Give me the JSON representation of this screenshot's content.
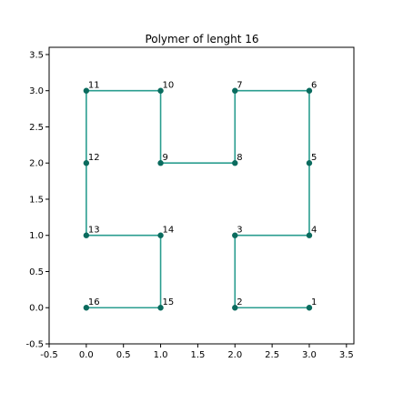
{
  "chart_data": {
    "type": "line",
    "title": "Polymer of lenght 16",
    "xlabel": "",
    "ylabel": "",
    "xlim": [
      -0.5,
      3.6
    ],
    "ylim": [
      -0.5,
      3.6
    ],
    "grid": false,
    "xticks": [
      "-0.5",
      "0.0",
      "0.5",
      "1.0",
      "1.5",
      "2.0",
      "2.5",
      "3.0",
      "3.5"
    ],
    "xtick_values": [
      -0.5,
      0.0,
      0.5,
      1.0,
      1.5,
      2.0,
      2.5,
      3.0,
      3.5
    ],
    "yticks": [
      "-0.5",
      "0.0",
      "0.5",
      "1.0",
      "1.5",
      "2.0",
      "2.5",
      "3.0",
      "3.5"
    ],
    "ytick_values": [
      -0.5,
      0.0,
      0.5,
      1.0,
      1.5,
      2.0,
      2.5,
      3.0,
      3.5
    ],
    "colors": {
      "line": "#2a9d8f",
      "marker": "#0a6b5e"
    },
    "points": [
      {
        "label": "1",
        "x": 3,
        "y": 0
      },
      {
        "label": "2",
        "x": 2,
        "y": 0
      },
      {
        "label": "3",
        "x": 2,
        "y": 1
      },
      {
        "label": "4",
        "x": 3,
        "y": 1
      },
      {
        "label": "5",
        "x": 3,
        "y": 2
      },
      {
        "label": "6",
        "x": 3,
        "y": 3
      },
      {
        "label": "7",
        "x": 2,
        "y": 3
      },
      {
        "label": "8",
        "x": 2,
        "y": 2
      },
      {
        "label": "9",
        "x": 1,
        "y": 2
      },
      {
        "label": "10",
        "x": 1,
        "y": 3
      },
      {
        "label": "11",
        "x": 0,
        "y": 3
      },
      {
        "label": "12",
        "x": 0,
        "y": 2
      },
      {
        "label": "13",
        "x": 0,
        "y": 1
      },
      {
        "label": "14",
        "x": 1,
        "y": 1
      },
      {
        "label": "15",
        "x": 1,
        "y": 0
      },
      {
        "label": "16",
        "x": 0,
        "y": 0
      }
    ]
  }
}
